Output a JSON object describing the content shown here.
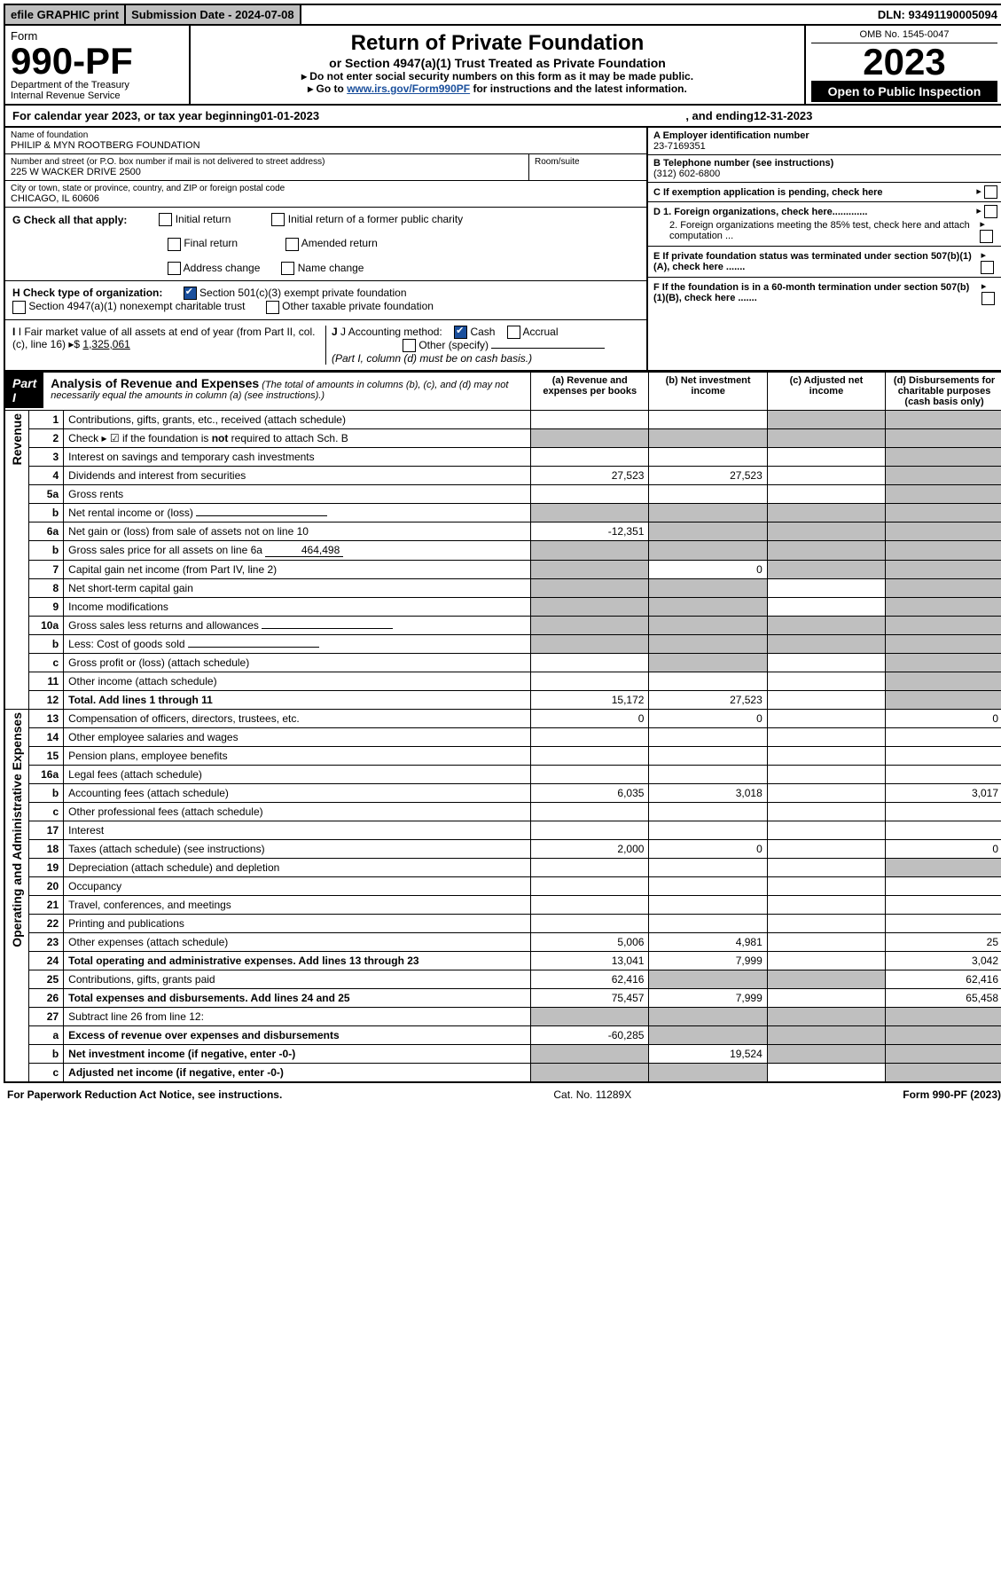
{
  "topbar": {
    "efile": "efile GRAPHIC print",
    "sub_label": "Submission Date - 2024-07-08",
    "dln": "DLN: 93491190005094"
  },
  "header": {
    "form_word": "Form",
    "form_no": "990-PF",
    "dept1": "Department of the Treasury",
    "dept2": "Internal Revenue Service",
    "title": "Return of Private Foundation",
    "subtitle": "or Section 4947(a)(1) Trust Treated as Private Foundation",
    "instr1": "▸ Do not enter social security numbers on this form as it may be made public.",
    "instr2a": "▸ Go to ",
    "instr2_link": "www.irs.gov/Form990PF",
    "instr2b": " for instructions and the latest information.",
    "omb": "OMB No. 1545-0047",
    "year": "2023",
    "open": "Open to Public Inspection"
  },
  "calendar": {
    "prefix": "For calendar year 2023, or tax year beginning ",
    "begin": "01-01-2023",
    "mid": ", and ending ",
    "end": "12-31-2023"
  },
  "info": {
    "name_lbl": "Name of foundation",
    "name_val": "PHILIP & MYN ROOTBERG FOUNDATION",
    "addr_lbl": "Number and street (or P.O. box number if mail is not delivered to street address)",
    "addr_val": "225 W WACKER DRIVE 2500",
    "room_lbl": "Room/suite",
    "city_lbl": "City or town, state or province, country, and ZIP or foreign postal code",
    "city_val": "CHICAGO, IL  60606",
    "a_lbl": "A Employer identification number",
    "a_val": "23-7169351",
    "b_lbl": "B Telephone number (see instructions)",
    "b_val": "(312) 602-6800",
    "c_lbl": "C If exemption application is pending, check here",
    "d1_lbl": "D 1. Foreign organizations, check here.............",
    "d2_lbl": "2. Foreign organizations meeting the 85% test, check here and attach computation ...",
    "e_lbl": "E  If private foundation status was terminated under section 507(b)(1)(A), check here .......",
    "f_lbl": "F  If the foundation is in a 60-month termination under section 507(b)(1)(B), check here ......."
  },
  "g": {
    "label": "G Check all that apply:",
    "opts": [
      "Initial return",
      "Final return",
      "Address change",
      "Initial return of a former public charity",
      "Amended return",
      "Name change"
    ]
  },
  "h": {
    "label": "H Check type of organization:",
    "o1": "Section 501(c)(3) exempt private foundation",
    "o2": "Section 4947(a)(1) nonexempt charitable trust",
    "o3": "Other taxable private foundation"
  },
  "i": {
    "label": "I Fair market value of all assets at end of year (from Part II, col. (c), line 16)",
    "val": "1,325,061"
  },
  "j": {
    "label": "J Accounting method:",
    "o1": "Cash",
    "o2": "Accrual",
    "o3": "Other (specify)",
    "note": "(Part I, column (d) must be on cash basis.)"
  },
  "part1": {
    "label": "Part I",
    "title": "Analysis of Revenue and Expenses",
    "note": " (The total of amounts in columns (b), (c), and (d) may not necessarily equal the amounts in column (a) (see instructions).)",
    "col_a": "(a)  Revenue and expenses per books",
    "col_b": "(b)  Net investment income",
    "col_c": "(c)  Adjusted net income",
    "col_d": "(d)  Disbursements for charitable purposes (cash basis only)"
  },
  "side": {
    "rev": "Revenue",
    "exp": "Operating and Administrative Expenses"
  },
  "rows": [
    {
      "n": "1",
      "d": "Contributions, gifts, grants, etc., received (attach schedule)",
      "a": "",
      "b": "",
      "c": "s",
      "dd": "s"
    },
    {
      "n": "2",
      "d": "Check ▸ ☑ if the foundation is not required to attach Sch. B",
      "a": "s",
      "b": "s",
      "c": "s",
      "dd": "s",
      "bold_not": true
    },
    {
      "n": "3",
      "d": "Interest on savings and temporary cash investments",
      "a": "",
      "b": "",
      "c": "",
      "dd": "s"
    },
    {
      "n": "4",
      "d": "Dividends and interest from securities",
      "a": "27,523",
      "b": "27,523",
      "c": "",
      "dd": "s"
    },
    {
      "n": "5a",
      "d": "Gross rents",
      "a": "",
      "b": "",
      "c": "",
      "dd": "s"
    },
    {
      "n": "b",
      "d": "Net rental income or (loss)",
      "a": "s",
      "b": "s",
      "c": "s",
      "dd": "s",
      "inline": true
    },
    {
      "n": "6a",
      "d": "Net gain or (loss) from sale of assets not on line 10",
      "a": "-12,351",
      "b": "s",
      "c": "s",
      "dd": "s"
    },
    {
      "n": "b",
      "d": "Gross sales price for all assets on line 6a",
      "a": "s",
      "b": "s",
      "c": "s",
      "dd": "s",
      "inline_val": "464,498"
    },
    {
      "n": "7",
      "d": "Capital gain net income (from Part IV, line 2)",
      "a": "s",
      "b": "0",
      "c": "s",
      "dd": "s"
    },
    {
      "n": "8",
      "d": "Net short-term capital gain",
      "a": "s",
      "b": "s",
      "c": "",
      "dd": "s"
    },
    {
      "n": "9",
      "d": "Income modifications",
      "a": "s",
      "b": "s",
      "c": "",
      "dd": "s"
    },
    {
      "n": "10a",
      "d": "Gross sales less returns and allowances",
      "a": "s",
      "b": "s",
      "c": "s",
      "dd": "s",
      "inline": true
    },
    {
      "n": "b",
      "d": "Less: Cost of goods sold",
      "a": "s",
      "b": "s",
      "c": "s",
      "dd": "s",
      "inline": true
    },
    {
      "n": "c",
      "d": "Gross profit or (loss) (attach schedule)",
      "a": "",
      "b": "s",
      "c": "",
      "dd": "s"
    },
    {
      "n": "11",
      "d": "Other income (attach schedule)",
      "a": "",
      "b": "",
      "c": "",
      "dd": "s"
    },
    {
      "n": "12",
      "d": "Total. Add lines 1 through 11",
      "a": "15,172",
      "b": "27,523",
      "c": "",
      "dd": "s",
      "bold": true
    },
    {
      "n": "13",
      "d": "Compensation of officers, directors, trustees, etc.",
      "a": "0",
      "b": "0",
      "c": "",
      "dd": "0"
    },
    {
      "n": "14",
      "d": "Other employee salaries and wages",
      "a": "",
      "b": "",
      "c": "",
      "dd": ""
    },
    {
      "n": "15",
      "d": "Pension plans, employee benefits",
      "a": "",
      "b": "",
      "c": "",
      "dd": ""
    },
    {
      "n": "16a",
      "d": "Legal fees (attach schedule)",
      "a": "",
      "b": "",
      "c": "",
      "dd": ""
    },
    {
      "n": "b",
      "d": "Accounting fees (attach schedule)",
      "a": "6,035",
      "b": "3,018",
      "c": "",
      "dd": "3,017"
    },
    {
      "n": "c",
      "d": "Other professional fees (attach schedule)",
      "a": "",
      "b": "",
      "c": "",
      "dd": ""
    },
    {
      "n": "17",
      "d": "Interest",
      "a": "",
      "b": "",
      "c": "",
      "dd": ""
    },
    {
      "n": "18",
      "d": "Taxes (attach schedule) (see instructions)",
      "a": "2,000",
      "b": "0",
      "c": "",
      "dd": "0"
    },
    {
      "n": "19",
      "d": "Depreciation (attach schedule) and depletion",
      "a": "",
      "b": "",
      "c": "",
      "dd": "s"
    },
    {
      "n": "20",
      "d": "Occupancy",
      "a": "",
      "b": "",
      "c": "",
      "dd": ""
    },
    {
      "n": "21",
      "d": "Travel, conferences, and meetings",
      "a": "",
      "b": "",
      "c": "",
      "dd": ""
    },
    {
      "n": "22",
      "d": "Printing and publications",
      "a": "",
      "b": "",
      "c": "",
      "dd": ""
    },
    {
      "n": "23",
      "d": "Other expenses (attach schedule)",
      "a": "5,006",
      "b": "4,981",
      "c": "",
      "dd": "25"
    },
    {
      "n": "24",
      "d": "Total operating and administrative expenses. Add lines 13 through 23",
      "a": "13,041",
      "b": "7,999",
      "c": "",
      "dd": "3,042",
      "bold": true,
      "two": true
    },
    {
      "n": "25",
      "d": "Contributions, gifts, grants paid",
      "a": "62,416",
      "b": "s",
      "c": "s",
      "dd": "62,416"
    },
    {
      "n": "26",
      "d": "Total expenses and disbursements. Add lines 24 and 25",
      "a": "75,457",
      "b": "7,999",
      "c": "",
      "dd": "65,458",
      "bold": true,
      "two": true
    },
    {
      "n": "27",
      "d": "Subtract line 26 from line 12:",
      "a": "s",
      "b": "s",
      "c": "s",
      "dd": "s"
    },
    {
      "n": "a",
      "d": "Excess of revenue over expenses and disbursements",
      "a": "-60,285",
      "b": "s",
      "c": "s",
      "dd": "s",
      "bold": true
    },
    {
      "n": "b",
      "d": "Net investment income (if negative, enter -0-)",
      "a": "s",
      "b": "19,524",
      "c": "s",
      "dd": "s",
      "bold": true
    },
    {
      "n": "c",
      "d": "Adjusted net income (if negative, enter -0-)",
      "a": "s",
      "b": "s",
      "c": "",
      "dd": "s",
      "bold": true
    }
  ],
  "footer": {
    "left": "For Paperwork Reduction Act Notice, see instructions.",
    "mid": "Cat. No. 11289X",
    "right": "Form 990-PF (2023)"
  }
}
